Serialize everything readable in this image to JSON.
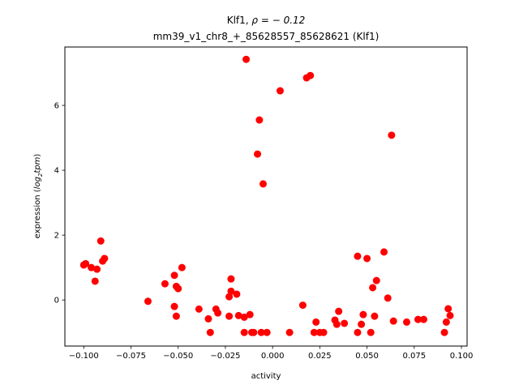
{
  "chart_data": {
    "type": "scatter",
    "title_line1_prefix": "Klf1, ",
    "title_line1_rho": "ρ = − 0.12",
    "title_line2": "mm39_v1_chr8_+_85628557_85628621 (Klf1)",
    "xlabel": "activity",
    "ylabel_prefix": "expression (",
    "ylabel_math": "log",
    "ylabel_sub": "2",
    "ylabel_tpm": "tpm",
    "ylabel_suffix": ")",
    "xlim": [
      -0.11,
      0.103
    ],
    "ylim": [
      -1.42,
      7.8
    ],
    "xticks": [
      -0.1,
      -0.075,
      -0.05,
      -0.025,
      0.0,
      0.025,
      0.05,
      0.075,
      0.1
    ],
    "xtick_labels": [
      "−0.100",
      "−0.075",
      "−0.050",
      "−0.025",
      "0.000",
      "0.025",
      "0.050",
      "0.075",
      "0.100"
    ],
    "yticks": [
      0,
      2,
      4,
      6
    ],
    "ytick_labels": [
      "0",
      "2",
      "4",
      "6"
    ],
    "grid": false,
    "marker_color": "#ff0000",
    "points": [
      {
        "x": -0.1,
        "y": 1.08
      },
      {
        "x": -0.099,
        "y": 1.12
      },
      {
        "x": -0.096,
        "y": 1.0
      },
      {
        "x": -0.094,
        "y": 0.58
      },
      {
        "x": -0.093,
        "y": 0.95
      },
      {
        "x": -0.091,
        "y": 1.82
      },
      {
        "x": -0.09,
        "y": 1.2
      },
      {
        "x": -0.089,
        "y": 1.28
      },
      {
        "x": -0.066,
        "y": -0.04
      },
      {
        "x": -0.057,
        "y": 0.5
      },
      {
        "x": -0.052,
        "y": 0.76
      },
      {
        "x": -0.052,
        "y": -0.2
      },
      {
        "x": -0.051,
        "y": -0.5
      },
      {
        "x": -0.051,
        "y": 0.42
      },
      {
        "x": -0.05,
        "y": 0.35
      },
      {
        "x": -0.048,
        "y": 1.0
      },
      {
        "x": -0.039,
        "y": -0.28
      },
      {
        "x": -0.034,
        "y": -0.58
      },
      {
        "x": -0.033,
        "y": -1.0
      },
      {
        "x": -0.03,
        "y": -0.28
      },
      {
        "x": -0.029,
        "y": -0.4
      },
      {
        "x": -0.023,
        "y": 0.1
      },
      {
        "x": -0.023,
        "y": -0.5
      },
      {
        "x": -0.022,
        "y": 0.65
      },
      {
        "x": -0.022,
        "y": 0.27
      },
      {
        "x": -0.019,
        "y": 0.18
      },
      {
        "x": -0.018,
        "y": -0.48
      },
      {
        "x": -0.015,
        "y": -0.53
      },
      {
        "x": -0.015,
        "y": -1.0
      },
      {
        "x": -0.014,
        "y": 7.42
      },
      {
        "x": -0.012,
        "y": -0.45
      },
      {
        "x": -0.011,
        "y": -1.0
      },
      {
        "x": -0.01,
        "y": -1.0
      },
      {
        "x": -0.008,
        "y": 4.5
      },
      {
        "x": -0.007,
        "y": 5.55
      },
      {
        "x": -0.006,
        "y": -1.0
      },
      {
        "x": -0.005,
        "y": 3.58
      },
      {
        "x": -0.003,
        "y": -1.0
      },
      {
        "x": 0.004,
        "y": 6.45
      },
      {
        "x": 0.009,
        "y": -1.0
      },
      {
        "x": 0.016,
        "y": -0.16
      },
      {
        "x": 0.018,
        "y": 6.85
      },
      {
        "x": 0.02,
        "y": 6.92
      },
      {
        "x": 0.022,
        "y": -1.0
      },
      {
        "x": 0.023,
        "y": -0.68
      },
      {
        "x": 0.025,
        "y": -1.0
      },
      {
        "x": 0.027,
        "y": -1.0
      },
      {
        "x": 0.033,
        "y": -0.62
      },
      {
        "x": 0.034,
        "y": -0.75
      },
      {
        "x": 0.035,
        "y": -0.35
      },
      {
        "x": 0.038,
        "y": -0.72
      },
      {
        "x": 0.045,
        "y": -1.0
      },
      {
        "x": 0.045,
        "y": 1.35
      },
      {
        "x": 0.047,
        "y": -0.75
      },
      {
        "x": 0.048,
        "y": -0.45
      },
      {
        "x": 0.05,
        "y": 1.28
      },
      {
        "x": 0.052,
        "y": -1.0
      },
      {
        "x": 0.053,
        "y": 0.38
      },
      {
        "x": 0.054,
        "y": -0.5
      },
      {
        "x": 0.055,
        "y": 0.6
      },
      {
        "x": 0.059,
        "y": 1.48
      },
      {
        "x": 0.061,
        "y": 0.06
      },
      {
        "x": 0.063,
        "y": 5.08
      },
      {
        "x": 0.064,
        "y": -0.65
      },
      {
        "x": 0.071,
        "y": -0.68
      },
      {
        "x": 0.077,
        "y": -0.6
      },
      {
        "x": 0.08,
        "y": -0.6
      },
      {
        "x": 0.091,
        "y": -1.0
      },
      {
        "x": 0.092,
        "y": -0.68
      },
      {
        "x": 0.093,
        "y": -0.27
      },
      {
        "x": 0.094,
        "y": -0.48
      }
    ]
  }
}
